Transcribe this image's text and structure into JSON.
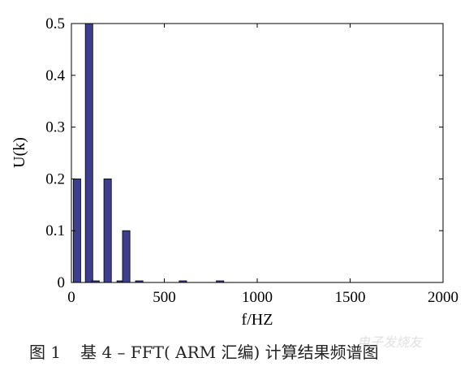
{
  "chart_data": {
    "type": "bar",
    "xlabel": "f/HZ",
    "ylabel": "U(k)",
    "xlim": [
      0,
      2000
    ],
    "ylim": [
      0,
      0.5
    ],
    "xticks": [
      0,
      500,
      1000,
      1500,
      2000
    ],
    "yticks": [
      0,
      0.1,
      0.2,
      0.3,
      0.4,
      0.5
    ],
    "bar_width": 40,
    "bar_color": "#3d3f8e",
    "grid": false,
    "bars": [
      {
        "x": 30,
        "value": 0.2
      },
      {
        "x": 95,
        "value": 0.5
      },
      {
        "x": 130,
        "value": 0.003
      },
      {
        "x": 195,
        "value": 0.2
      },
      {
        "x": 265,
        "value": 0.003
      },
      {
        "x": 295,
        "value": 0.1
      },
      {
        "x": 365,
        "value": 0.003
      },
      {
        "x": 600,
        "value": 0.003
      },
      {
        "x": 800,
        "value": 0.003
      }
    ]
  },
  "caption": {
    "figure_no": "图 1",
    "text": "基 4 – FFT( ARM 汇编) 计算结果频谱图"
  },
  "watermark": "电子发烧友"
}
